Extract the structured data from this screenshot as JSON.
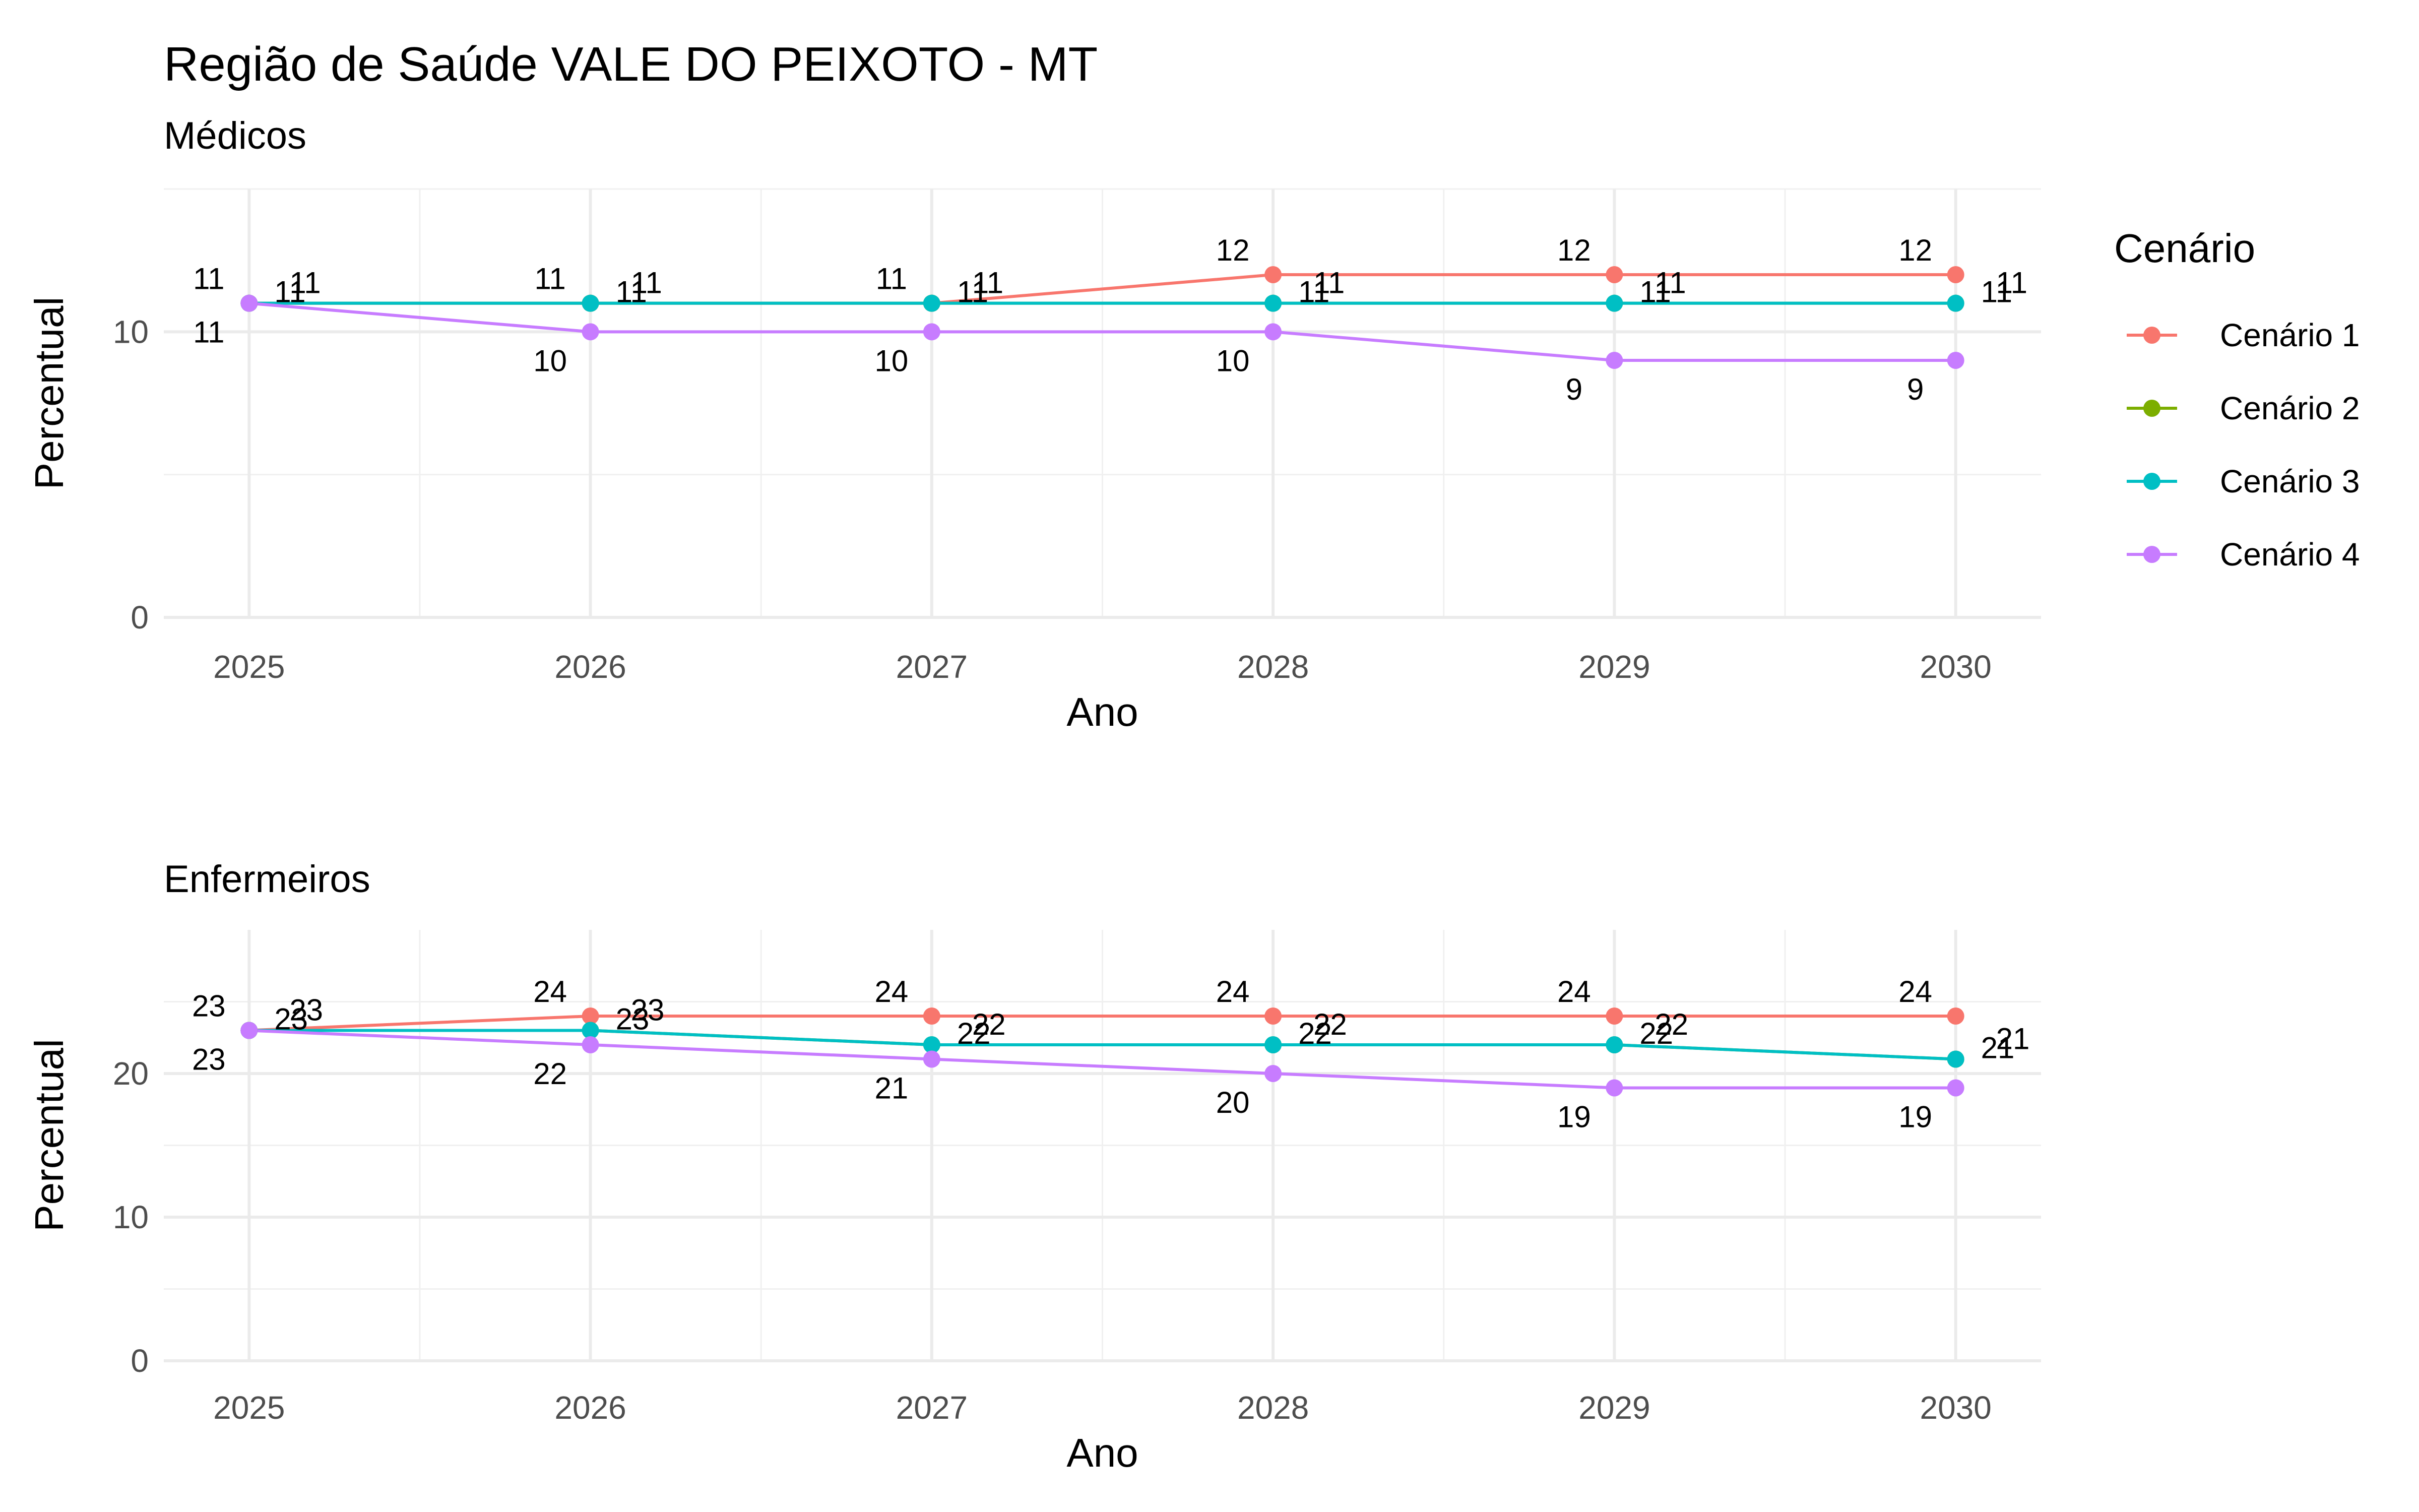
{
  "title": "Região de Saúde VALE DO PEIXOTO - MT",
  "legend": {
    "title": "Cenário",
    "items": [
      {
        "name": "Cenário 1",
        "color": "#F8766D"
      },
      {
        "name": "Cenário 2",
        "color": "#7CAE00"
      },
      {
        "name": "Cenário 3",
        "color": "#00BFC4"
      },
      {
        "name": "Cenário 4",
        "color": "#C77CFF"
      }
    ],
    "position": "right"
  },
  "chart_data": [
    {
      "type": "line",
      "subtitle": "Médicos",
      "xlabel": "Ano",
      "ylabel": "Percentual",
      "x": [
        2025,
        2026,
        2027,
        2028,
        2029,
        2030
      ],
      "xticks": [
        "2025",
        "2026",
        "2027",
        "2028",
        "2029",
        "2030"
      ],
      "yticks": [
        0,
        10
      ],
      "ylim": [
        0,
        15
      ],
      "grid": true,
      "series": [
        {
          "name": "Cenário 1",
          "values": [
            11,
            11,
            11,
            12,
            12,
            12
          ]
        },
        {
          "name": "Cenário 2",
          "values": [
            11,
            11,
            11,
            11,
            11,
            11
          ]
        },
        {
          "name": "Cenário 3",
          "values": [
            11,
            11,
            11,
            11,
            11,
            11
          ]
        },
        {
          "name": "Cenário 4",
          "values": [
            11,
            10,
            10,
            10,
            9,
            9
          ]
        }
      ]
    },
    {
      "type": "line",
      "subtitle": "Enfermeiros",
      "xlabel": "Ano",
      "ylabel": "Percentual",
      "x": [
        2025,
        2026,
        2027,
        2028,
        2029,
        2030
      ],
      "xticks": [
        "2025",
        "2026",
        "2027",
        "2028",
        "2029",
        "2030"
      ],
      "yticks": [
        0,
        10,
        20
      ],
      "ylim": [
        0,
        30
      ],
      "grid": true,
      "series": [
        {
          "name": "Cenário 1",
          "values": [
            23,
            24,
            24,
            24,
            24,
            24
          ]
        },
        {
          "name": "Cenário 2",
          "values": [
            23,
            23,
            22,
            22,
            22,
            21
          ]
        },
        {
          "name": "Cenário 3",
          "values": [
            23,
            23,
            22,
            22,
            22,
            21
          ]
        },
        {
          "name": "Cenário 4",
          "values": [
            23,
            22,
            21,
            20,
            19,
            19
          ]
        }
      ]
    }
  ]
}
